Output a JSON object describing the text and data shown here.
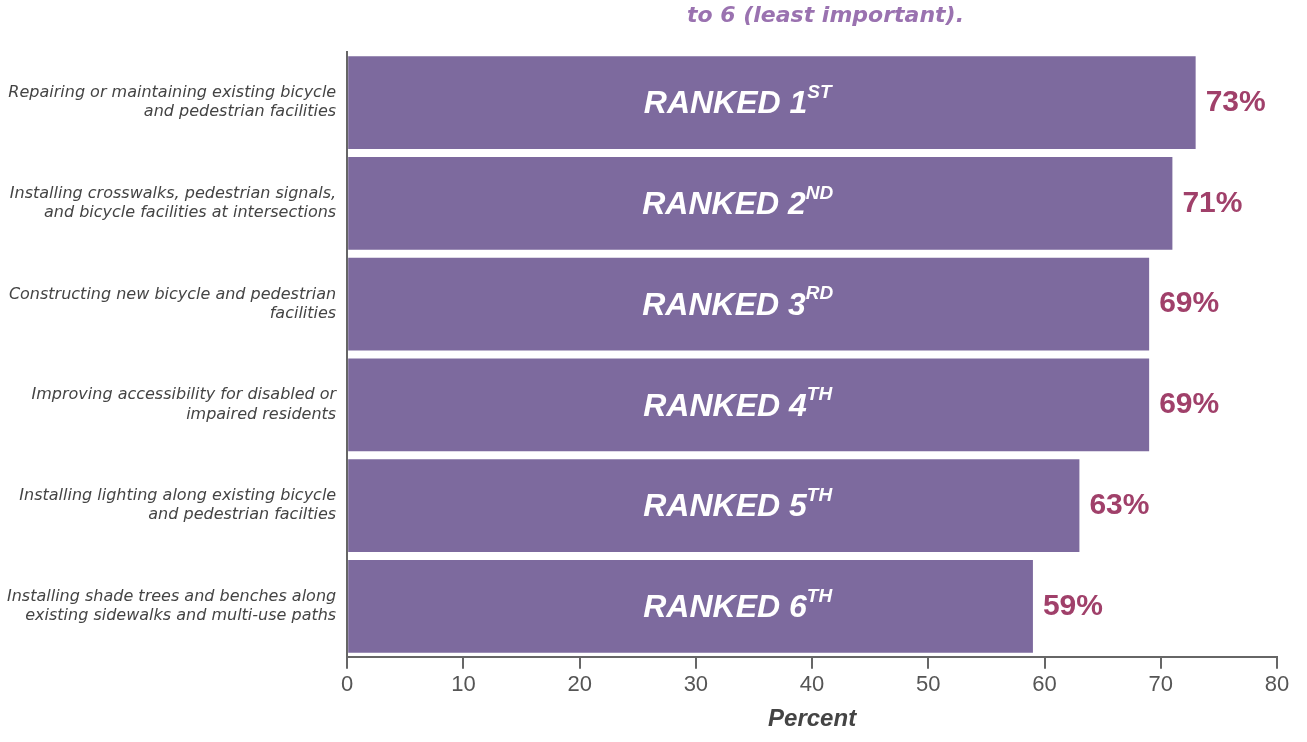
{
  "chart_data": {
    "type": "bar",
    "orientation": "horizontal",
    "title": "to 6 (least important).",
    "xlabel": "Percent",
    "categories": [
      "Repairing or maintaining existing bicycle and pedestrian facilities",
      "Installing crosswalks, pedestrian signals, and bicycle facilities at intersections",
      "Constructing new bicycle and pedestrian facilities",
      "Improving accessibility for disabled or impaired residents",
      "Installing lighting along existing bicycle and pedestrian facilties",
      "Installing shade trees and benches along existing sidewalks and multi-use paths"
    ],
    "values": [
      73,
      71,
      69,
      69,
      63,
      59
    ],
    "color": "#7d6a9e",
    "value_labels": [
      "73%",
      "71%",
      "69%",
      "69%",
      "63%",
      "59%"
    ],
    "annotations": [
      "RANKED 1$^{ST}$",
      "RANKED 2$^{ND}$",
      "RANKED 3$^{RD}$",
      "RANKED 4$^{TH}$",
      "RANKED 5$^{TH}$",
      "RANKED 6$^{TH}$"
    ],
    "xlim": [
      0,
      80
    ],
    "xticks": [
      0,
      10,
      20,
      30,
      40,
      50,
      60,
      70,
      80
    ],
    "grid": false,
    "legend": false
  }
}
